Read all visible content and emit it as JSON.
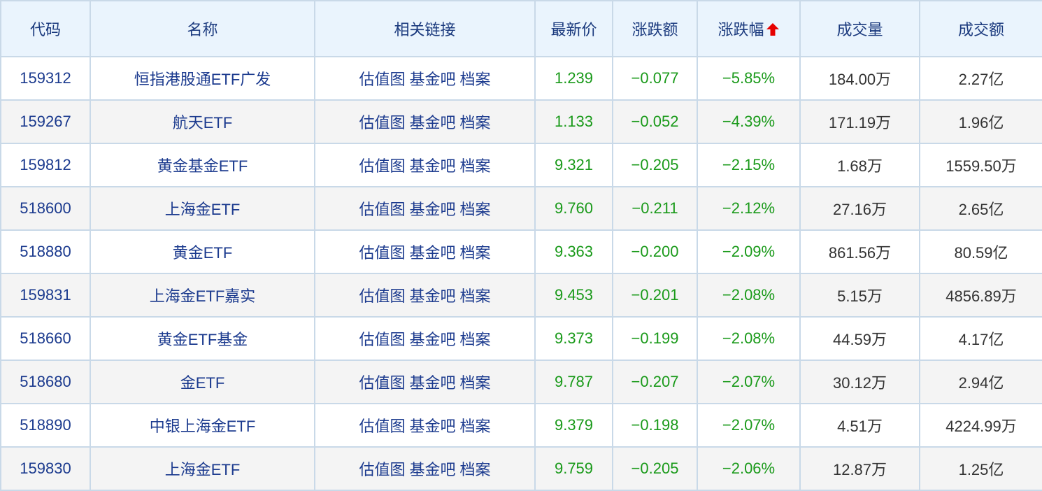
{
  "headers": [
    "代码",
    "名称",
    "相关链接",
    "最新价",
    "涨跌额",
    "涨跌幅",
    "成交量",
    "成交额"
  ],
  "sort_indicator": "arrow-up-icon",
  "colors": {
    "down": "#1a9a1a",
    "header_bg": "#eaf4fd",
    "link": "#1b3a8e",
    "sort_arrow": "#e60000"
  },
  "link_labels": [
    "估值图",
    "基金吧",
    "档案"
  ],
  "rows": [
    {
      "code": "159312",
      "name": "恒指港股通ETF广发",
      "price": "1.239",
      "change": "−0.077",
      "pct": "−5.85%",
      "volume": "184.00万",
      "amount": "2.27亿"
    },
    {
      "code": "159267",
      "name": "航天ETF",
      "price": "1.133",
      "change": "−0.052",
      "pct": "−4.39%",
      "volume": "171.19万",
      "amount": "1.96亿"
    },
    {
      "code": "159812",
      "name": "黄金基金ETF",
      "price": "9.321",
      "change": "−0.205",
      "pct": "−2.15%",
      "volume": "1.68万",
      "amount": "1559.50万"
    },
    {
      "code": "518600",
      "name": "上海金ETF",
      "price": "9.760",
      "change": "−0.211",
      "pct": "−2.12%",
      "volume": "27.16万",
      "amount": "2.65亿"
    },
    {
      "code": "518880",
      "name": "黄金ETF",
      "price": "9.363",
      "change": "−0.200",
      "pct": "−2.09%",
      "volume": "861.56万",
      "amount": "80.59亿"
    },
    {
      "code": "159831",
      "name": "上海金ETF嘉实",
      "price": "9.453",
      "change": "−0.201",
      "pct": "−2.08%",
      "volume": "5.15万",
      "amount": "4856.89万"
    },
    {
      "code": "518660",
      "name": "黄金ETF基金",
      "price": "9.373",
      "change": "−0.199",
      "pct": "−2.08%",
      "volume": "44.59万",
      "amount": "4.17亿"
    },
    {
      "code": "518680",
      "name": "金ETF",
      "price": "9.787",
      "change": "−0.207",
      "pct": "−2.07%",
      "volume": "30.12万",
      "amount": "2.94亿"
    },
    {
      "code": "518890",
      "name": "中银上海金ETF",
      "price": "9.379",
      "change": "−0.198",
      "pct": "−2.07%",
      "volume": "4.51万",
      "amount": "4224.99万"
    },
    {
      "code": "159830",
      "name": "上海金ETF",
      "price": "9.759",
      "change": "−0.205",
      "pct": "−2.06%",
      "volume": "12.87万",
      "amount": "1.25亿"
    }
  ]
}
